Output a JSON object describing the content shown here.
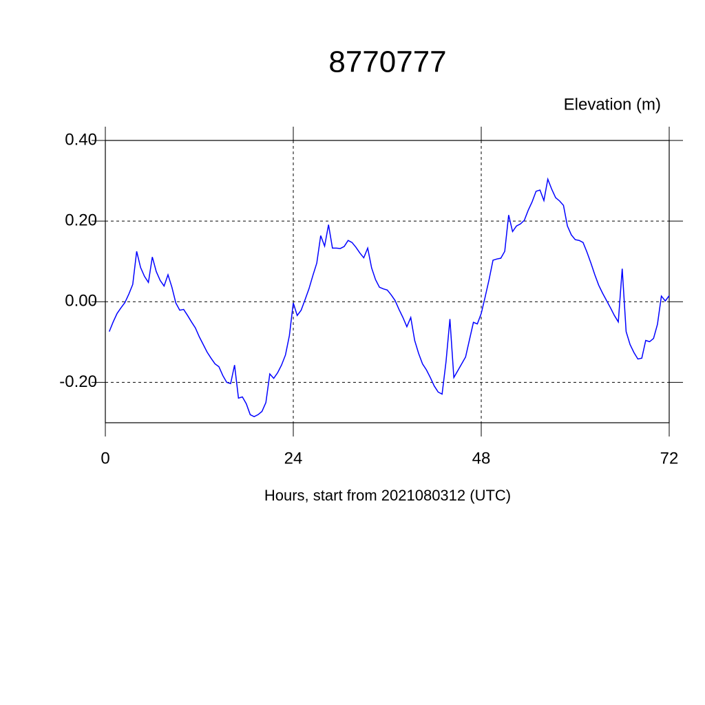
{
  "chart_data": {
    "type": "line",
    "title": "8770777",
    "ylabel": "Elevation (m)",
    "xlabel": "Hours, start from 2021080312 (UTC)",
    "x": [
      0.5,
      1,
      1.5,
      2,
      2.5,
      3,
      3.5,
      4,
      4.5,
      5,
      5.5,
      6,
      6.5,
      7,
      7.5,
      8,
      8.5,
      9,
      9.5,
      10,
      10.5,
      11,
      11.5,
      12,
      12.5,
      13,
      13.5,
      14,
      14.5,
      15,
      15.5,
      16,
      16.5,
      17,
      17.5,
      18,
      18.5,
      19,
      19.5,
      20,
      20.5,
      21,
      21.5,
      22,
      22.5,
      23,
      23.5,
      24,
      24.5,
      25,
      25.5,
      26,
      26.5,
      27,
      27.5,
      28,
      28.5,
      29,
      29.5,
      30,
      30.5,
      31,
      31.5,
      32,
      32.5,
      33,
      33.5,
      34,
      34.5,
      35,
      35.5,
      36,
      36.5,
      37,
      37.5,
      38,
      38.5,
      39,
      39.5,
      40,
      40.5,
      41,
      41.5,
      42,
      42.5,
      43,
      43.5,
      44,
      44.5,
      45,
      45.5,
      46,
      46.5,
      47,
      47.5,
      48,
      48.5,
      49,
      49.5,
      50,
      50.5,
      51,
      51.5,
      52,
      52.5,
      53,
      53.5,
      54,
      54.5,
      55,
      55.5,
      56,
      56.5,
      57,
      57.5,
      58,
      58.5,
      59,
      59.5,
      60,
      60.5,
      61,
      61.5,
      62,
      62.5,
      63,
      63.5,
      64,
      64.5,
      65,
      65.5,
      66,
      66.5,
      67,
      67.5,
      68,
      68.5,
      69,
      69.5,
      70,
      70.5,
      71,
      71.5,
      72
    ],
    "series": [
      {
        "name": "Elevation",
        "color": "#0000ff",
        "values": [
          -0.074,
          -0.05,
          -0.029,
          -0.015,
          -0.002,
          0.019,
          0.043,
          0.125,
          0.085,
          0.063,
          0.048,
          0.111,
          0.075,
          0.053,
          0.039,
          0.067,
          0.036,
          -0.003,
          -0.021,
          -0.019,
          -0.034,
          -0.05,
          -0.065,
          -0.087,
          -0.106,
          -0.125,
          -0.14,
          -0.154,
          -0.161,
          -0.183,
          -0.2,
          -0.203,
          -0.157,
          -0.239,
          -0.236,
          -0.253,
          -0.28,
          -0.285,
          -0.28,
          -0.272,
          -0.25,
          -0.179,
          -0.19,
          -0.176,
          -0.157,
          -0.132,
          -0.084,
          -0.003,
          -0.034,
          -0.021,
          0.005,
          0.032,
          0.065,
          0.096,
          0.164,
          0.138,
          0.191,
          0.133,
          0.133,
          0.132,
          0.137,
          0.152,
          0.147,
          0.135,
          0.121,
          0.109,
          0.133,
          0.084,
          0.055,
          0.036,
          0.032,
          0.029,
          0.017,
          0.003,
          -0.019,
          -0.039,
          -0.062,
          -0.039,
          -0.096,
          -0.128,
          -0.154,
          -0.169,
          -0.188,
          -0.209,
          -0.224,
          -0.229,
          -0.149,
          -0.043,
          -0.188,
          -0.171,
          -0.154,
          -0.137,
          -0.094,
          -0.051,
          -0.055,
          -0.029,
          0.012,
          0.055,
          0.103,
          0.106,
          0.108,
          0.125,
          0.215,
          0.174,
          0.188,
          0.193,
          0.202,
          0.227,
          0.248,
          0.274,
          0.277,
          0.251,
          0.304,
          0.279,
          0.258,
          0.25,
          0.239,
          0.188,
          0.166,
          0.154,
          0.152,
          0.147,
          0.123,
          0.096,
          0.067,
          0.041,
          0.021,
          0.003,
          -0.015,
          -0.034,
          -0.05,
          0.082,
          -0.074,
          -0.106,
          -0.126,
          -0.142,
          -0.14,
          -0.096,
          -0.099,
          -0.091,
          -0.056,
          0.014,
          0.002,
          0.015
        ]
      }
    ],
    "xlim": [
      0,
      72
    ],
    "xticks": [
      0,
      24,
      48,
      72
    ],
    "ylim": [
      -0.3,
      0.4
    ],
    "yticks": [
      {
        "value": -0.2,
        "label": "-0.20"
      },
      {
        "value": 0,
        "label": "0.00"
      },
      {
        "value": 0.2,
        "label": "0.20"
      },
      {
        "value": 0.4,
        "label": "0.40"
      }
    ],
    "grid": true
  }
}
